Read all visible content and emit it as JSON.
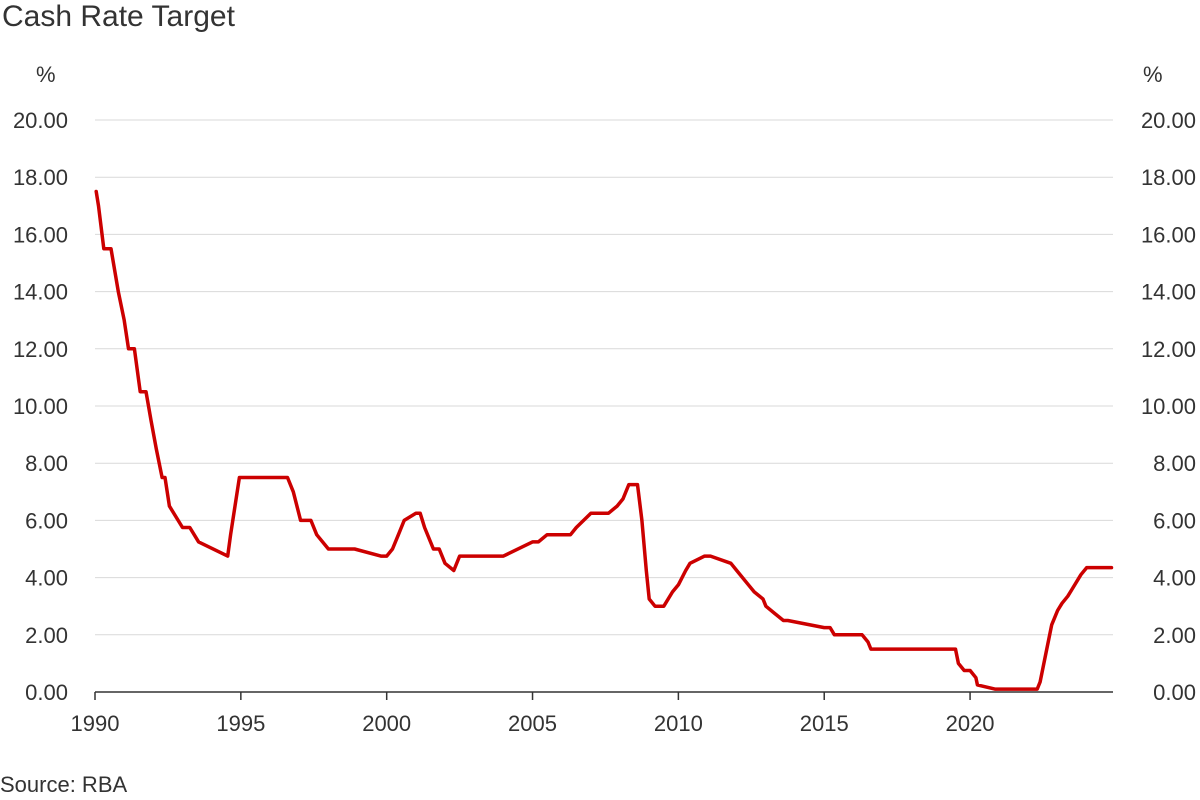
{
  "chart_data": {
    "type": "line",
    "title": "Cash Rate Target",
    "y_unit_left": "%",
    "y_unit_right": "%",
    "source": "Source: RBA",
    "xlim": [
      1990.0,
      2024.9
    ],
    "ylim": [
      0,
      20
    ],
    "x_ticks": [
      1990,
      1995,
      2000,
      2005,
      2010,
      2015,
      2020
    ],
    "x_tick_labels": [
      "1990",
      "1995",
      "2000",
      "2005",
      "2010",
      "2015",
      "2020"
    ],
    "y_ticks": [
      0,
      2,
      4,
      6,
      8,
      10,
      12,
      14,
      16,
      18,
      20
    ],
    "y_tick_labels": [
      "0.00",
      "2.00",
      "4.00",
      "6.00",
      "8.00",
      "10.00",
      "12.00",
      "14.00",
      "16.00",
      "18.00",
      "20.00"
    ],
    "grid": true,
    "legend": "none",
    "color": "#cc0000",
    "series": [
      {
        "x": [
          1990.04,
          1990.12,
          1990.3,
          1990.55,
          1990.8,
          1991.0,
          1991.15,
          1991.35,
          1991.55,
          1991.75,
          1991.92,
          1992.1,
          1992.3,
          1992.4,
          1992.55,
          1993.0,
          1993.25,
          1993.55,
          1994.55,
          1994.65,
          1994.8,
          1994.95,
          1995.0,
          1996.6,
          1996.8,
          1997.05,
          1997.4,
          1997.6,
          1998.0,
          1998.9,
          1999.8,
          2000.0,
          2000.2,
          2000.4,
          2000.6,
          2001.0,
          2001.15,
          2001.3,
          2001.6,
          2001.8,
          2002.0,
          2002.3,
          2002.5,
          2004.0,
          2005.0,
          2005.2,
          2005.5,
          2006.3,
          2006.5,
          2006.75,
          2007.0,
          2007.6,
          2007.9,
          2008.1,
          2008.3,
          2008.6,
          2008.75,
          2008.9,
          2009.0,
          2009.2,
          2009.5,
          2009.8,
          2010.0,
          2010.25,
          2010.4,
          2010.9,
          2011.1,
          2011.8,
          2012.0,
          2012.4,
          2012.6,
          2012.9,
          2013.0,
          2013.3,
          2013.6,
          2013.75,
          2015.0,
          2015.2,
          2015.35,
          2016.3,
          2016.5,
          2016.6,
          2019.5,
          2019.6,
          2019.8,
          2020.0,
          2020.2,
          2020.25,
          2020.85,
          2022.3,
          2022.4,
          2022.5,
          2022.6,
          2022.7,
          2022.8,
          2022.9,
          2023.0,
          2023.15,
          2023.35,
          2023.5,
          2023.8,
          2024.0,
          2024.85
        ],
        "y": [
          17.5,
          17.0,
          15.5,
          15.5,
          14.0,
          13.0,
          12.0,
          12.0,
          10.5,
          10.5,
          9.5,
          8.5,
          7.5,
          7.5,
          6.5,
          5.75,
          5.75,
          5.25,
          4.75,
          5.5,
          6.5,
          7.5,
          7.5,
          7.5,
          7.0,
          6.0,
          6.0,
          5.5,
          5.0,
          5.0,
          4.75,
          4.75,
          5.0,
          5.5,
          6.0,
          6.25,
          6.25,
          5.75,
          5.0,
          5.0,
          4.5,
          4.25,
          4.75,
          4.75,
          5.25,
          5.25,
          5.5,
          5.5,
          5.75,
          6.0,
          6.25,
          6.25,
          6.5,
          6.75,
          7.25,
          7.25,
          6.0,
          4.25,
          3.25,
          3.0,
          3.0,
          3.5,
          3.75,
          4.25,
          4.5,
          4.75,
          4.75,
          4.5,
          4.25,
          3.75,
          3.5,
          3.25,
          3.0,
          2.75,
          2.5,
          2.5,
          2.25,
          2.25,
          2.0,
          2.0,
          1.75,
          1.5,
          1.5,
          1.0,
          0.75,
          0.75,
          0.5,
          0.25,
          0.1,
          0.1,
          0.35,
          0.85,
          1.35,
          1.85,
          2.35,
          2.6,
          2.85,
          3.1,
          3.35,
          3.6,
          4.1,
          4.35,
          4.35
        ]
      }
    ]
  }
}
